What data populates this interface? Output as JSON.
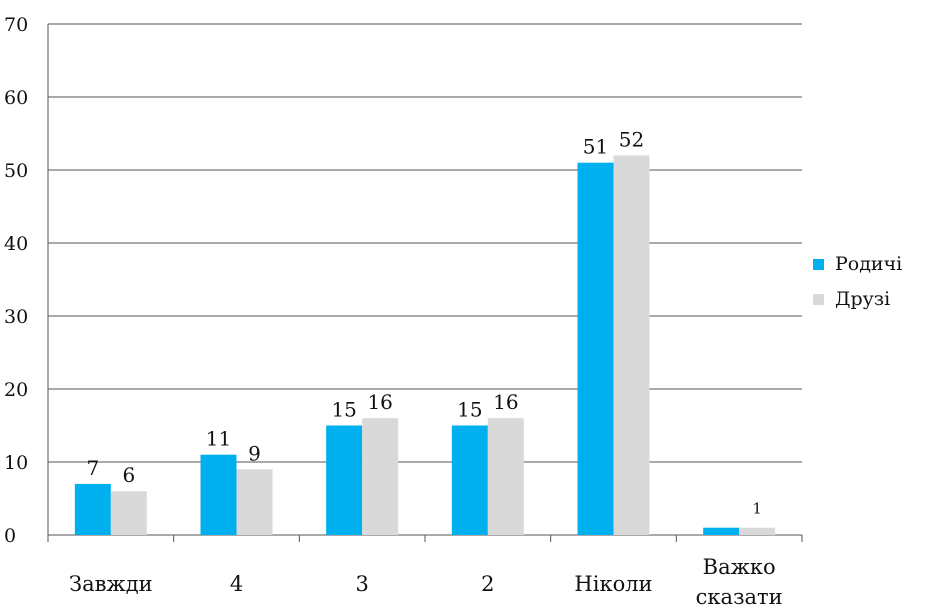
{
  "chart_data": {
    "type": "bar",
    "categories": [
      "Завжди",
      "4",
      "3",
      "2",
      "Ніколи",
      "Важко\nсказати"
    ],
    "series": [
      {
        "name": "Родичі",
        "values": [
          7,
          11,
          15,
          15,
          51,
          1
        ],
        "color": "#00b0ee"
      },
      {
        "name": "Друзі",
        "values": [
          6,
          9,
          16,
          16,
          52,
          1
        ],
        "color": "#d9d9d9"
      }
    ],
    "data_labels": [
      [
        "7",
        "11",
        "15",
        "15",
        "51",
        ""
      ],
      [
        "6",
        "9",
        "16",
        "16",
        "52",
        "1"
      ]
    ],
    "yticks": [
      0,
      10,
      20,
      30,
      40,
      50,
      60,
      70
    ],
    "ylim": [
      0,
      70
    ],
    "grid": true,
    "legend_position": "right"
  }
}
